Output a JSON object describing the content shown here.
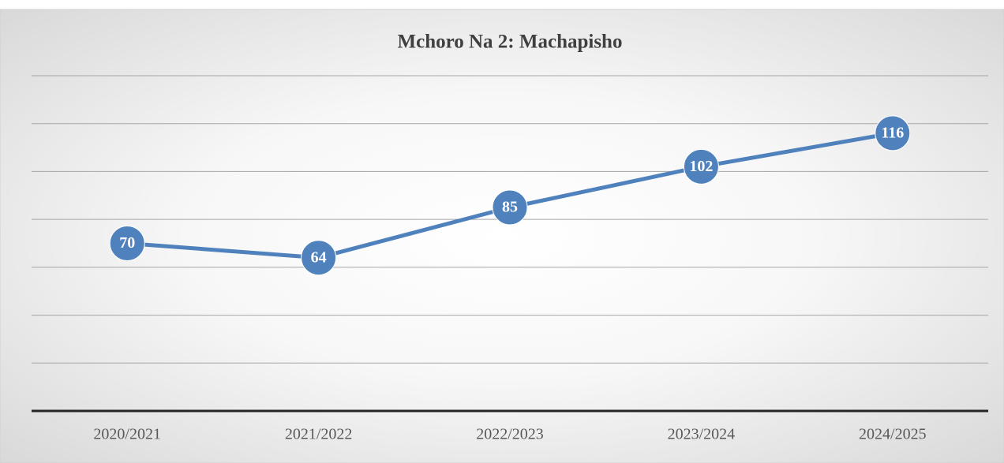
{
  "chart_data": {
    "type": "line",
    "title": "Mchoro Na 2: Machapisho",
    "categories": [
      "2020/2021",
      "2021/2022",
      "2022/2023",
      "2023/2024",
      "2024/2025"
    ],
    "values": [
      70,
      64,
      85,
      102,
      116
    ],
    "color": "#4f81bd",
    "ylim": [
      0,
      140
    ],
    "yticks": [
      0,
      20,
      40,
      60,
      80,
      100,
      120,
      140
    ],
    "grid": true
  }
}
